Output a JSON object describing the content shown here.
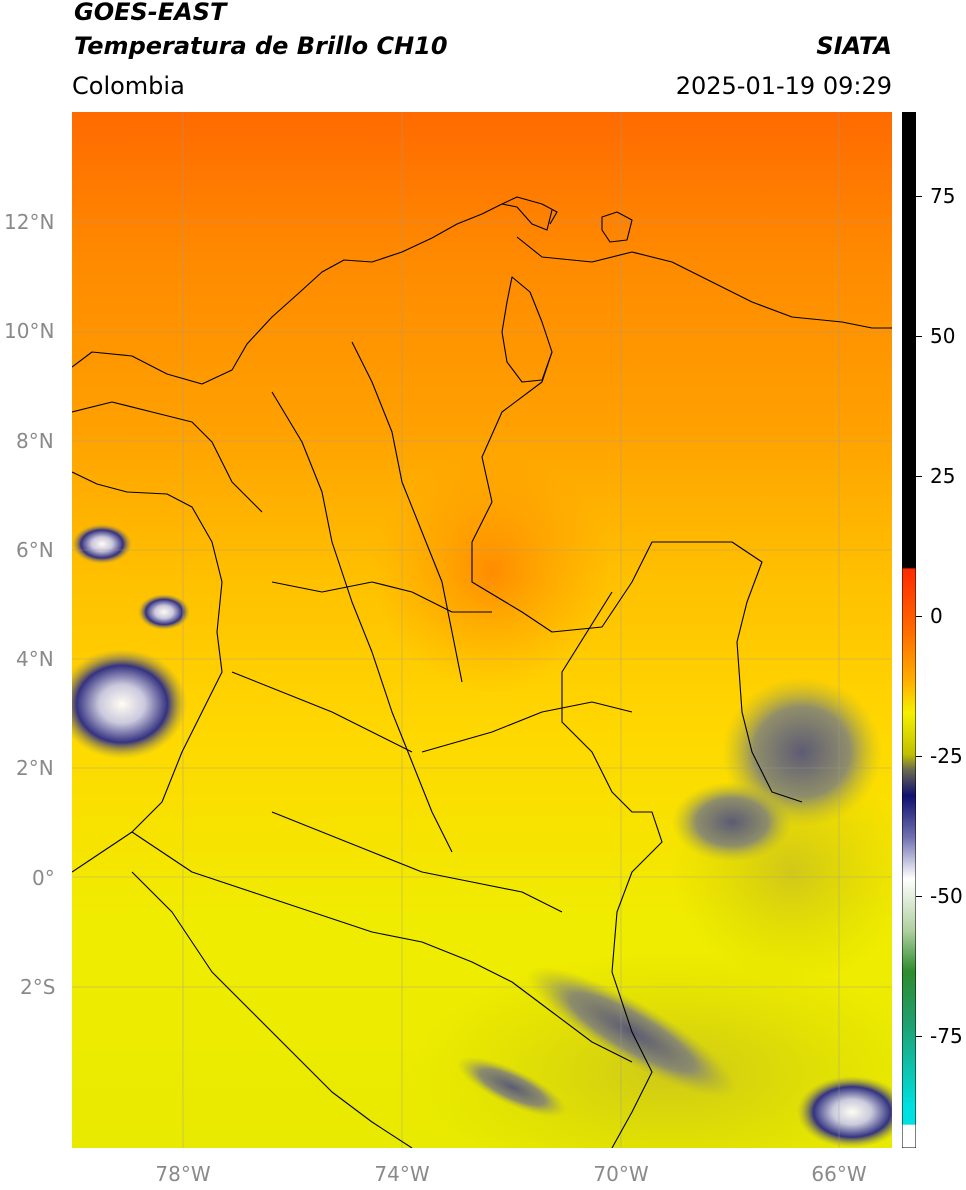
{
  "header": {
    "title_line1": "GOES-EAST",
    "title_line2": "Temperatura de Brillo CH10",
    "region": "Colombia",
    "source": "SIATA",
    "datetime": "2025-01-19 09:29"
  },
  "map": {
    "lat_labels": [
      "12°N",
      "10°N",
      "8°N",
      "6°N",
      "4°N",
      "2°N",
      "0°",
      "2°S"
    ],
    "lon_labels": [
      "78°W",
      "74°W",
      "70°W",
      "66°W"
    ]
  },
  "colorbar": {
    "tick_labels": [
      "75",
      "50",
      "25",
      "0",
      "-25",
      "-50",
      "-75"
    ],
    "range": [
      -95,
      90
    ],
    "colors": {
      "hot": "#000000",
      "red": "#ff2a00",
      "orange": "#ff8c00",
      "yellow": "#f5f000",
      "olive": "#8a8a30",
      "navy": "#101070",
      "white": "#ffffff",
      "green": "#2e8b2e",
      "cyan": "#00e0e0"
    }
  }
}
